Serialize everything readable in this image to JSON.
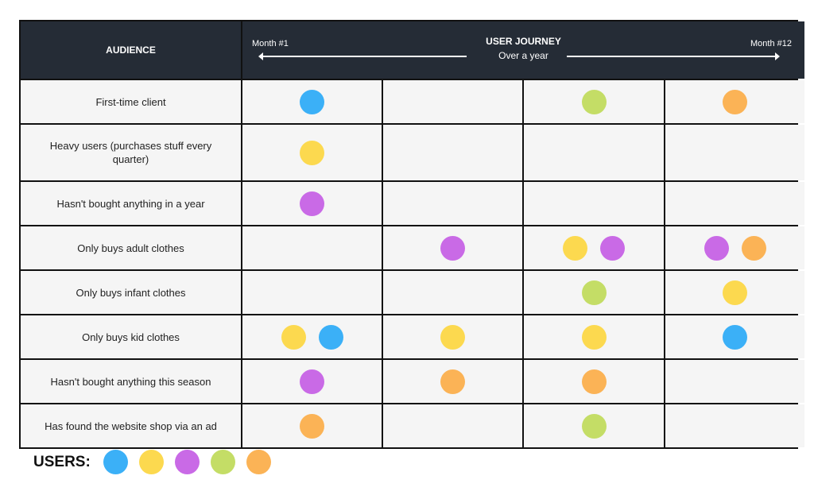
{
  "colors": {
    "blue": "#3bb0f7",
    "yellow": "#fcd94f",
    "purple": "#c96ae6",
    "green": "#c4dd66",
    "orange": "#fbb356",
    "header": "#252c36"
  },
  "header": {
    "audience": "AUDIENCE",
    "journey_title": "USER JOURNEY",
    "journey_sub": "Over a year",
    "start": "Month #1",
    "end": "Month #12"
  },
  "rows": [
    {
      "label": "First-time client",
      "cells": [
        [
          "blue"
        ],
        [],
        [
          "green"
        ],
        [
          "orange"
        ]
      ]
    },
    {
      "label": "Heavy users (purchases stuff every quarter)",
      "cells": [
        [
          "yellow"
        ],
        [],
        [],
        []
      ]
    },
    {
      "label": "Hasn't bought anything in a year",
      "cells": [
        [
          "purple"
        ],
        [],
        [],
        []
      ]
    },
    {
      "label": "Only buys adult clothes",
      "cells": [
        [],
        [
          "purple"
        ],
        [
          "yellow",
          "purple"
        ],
        [
          "purple",
          "orange"
        ]
      ]
    },
    {
      "label": "Only buys infant clothes",
      "cells": [
        [],
        [],
        [
          "green"
        ],
        [
          "yellow"
        ]
      ]
    },
    {
      "label": "Only buys kid clothes",
      "cells": [
        [
          "yellow",
          "blue"
        ],
        [
          "yellow"
        ],
        [
          "yellow"
        ],
        [
          "blue"
        ]
      ]
    },
    {
      "label": "Hasn't bought anything this season",
      "cells": [
        [
          "purple"
        ],
        [
          "orange"
        ],
        [
          "orange"
        ],
        []
      ]
    },
    {
      "label": "Has found the website shop via an ad",
      "cells": [
        [
          "orange"
        ],
        [],
        [
          "green"
        ],
        []
      ]
    }
  ],
  "legend": {
    "title": "USERS:",
    "users": [
      "blue",
      "yellow",
      "purple",
      "green",
      "orange"
    ]
  }
}
